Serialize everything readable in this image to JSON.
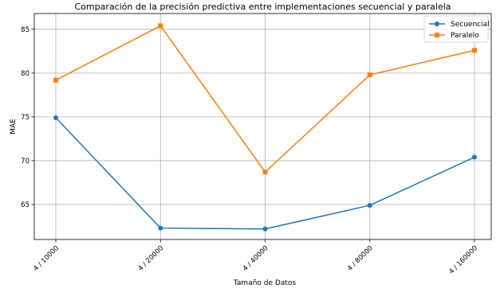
{
  "chart_data": {
    "type": "line",
    "title": "Comparación de la precisión predictiva entre implementaciones secuencial y paralela",
    "xlabel": "Tamaño de Datos",
    "ylabel": "MAE",
    "categories": [
      "4 / 10000",
      "4 / 20000",
      "4 / 40000",
      "4 / 80000",
      "4 / 160000"
    ],
    "yticks": [
      65,
      70,
      75,
      80,
      85
    ],
    "ylim": [
      61.0,
      86.8
    ],
    "grid": true,
    "legend_position": "top-right",
    "series": [
      {
        "name": "Secuencial",
        "color": "#1f77b4",
        "marker": "circle",
        "values": [
          74.9,
          62.3,
          62.2,
          64.9,
          70.4
        ]
      },
      {
        "name": "Paralelo",
        "color": "#ff7f0e",
        "marker": "square",
        "values": [
          79.2,
          85.4,
          68.7,
          79.8,
          82.6
        ]
      }
    ]
  }
}
